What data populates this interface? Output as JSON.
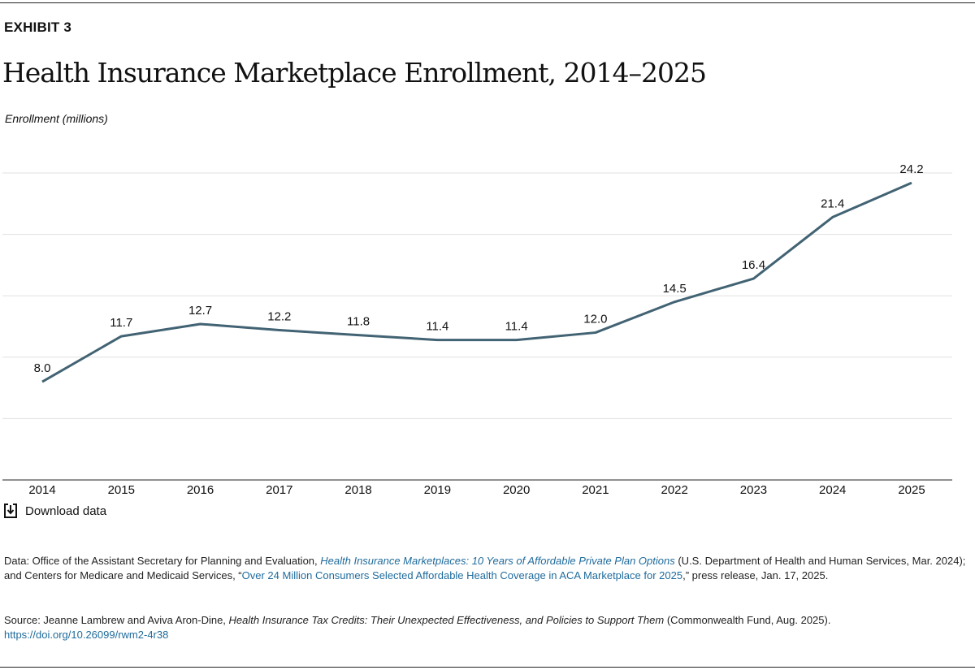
{
  "exhibit": "EXHIBIT 3",
  "title": "Health Insurance Marketplace Enrollment, 2014–2025",
  "download_label": "Download data",
  "colors": {
    "line": "#426373",
    "link": "#1f6b9c",
    "grid": "#e0e0e0"
  },
  "chart_data": {
    "type": "line",
    "title": "Health Insurance Marketplace Enrollment, 2014–2025",
    "ylabel": "Enrollment (millions)",
    "xlabel": "",
    "categories": [
      "2014",
      "2015",
      "2016",
      "2017",
      "2018",
      "2019",
      "2020",
      "2021",
      "2022",
      "2023",
      "2024",
      "2025"
    ],
    "values": [
      8.0,
      11.7,
      12.7,
      12.2,
      11.8,
      11.4,
      11.4,
      12.0,
      14.5,
      16.4,
      21.4,
      24.2
    ],
    "data_labels": [
      "8.0",
      "11.7",
      "12.7",
      "12.2",
      "11.8",
      "11.4",
      "11.4",
      "12.0",
      "14.5",
      "16.4",
      "21.4",
      "24.2"
    ],
    "ylim": [
      0,
      25
    ],
    "gridlines": [
      5,
      10,
      15,
      20,
      25
    ],
    "grid": true,
    "y_tick_labels_shown": false
  },
  "footer": {
    "data_prefix": "Data: Office of the Assistant Secretary for Planning and Evaluation, ",
    "data_link1": "Health Insurance Marketplaces: 10 Years of Affordable Private Plan Options",
    "data_mid": " (U.S. Department of Health and Human Services, Mar. 2024); and Centers for Medicare and Medicaid Services, “",
    "data_link2": "Over 24 Million Consumers Selected Affordable Health Coverage in ACA Marketplace for 2025",
    "data_suffix": ",” press release, Jan. 17, 2025.",
    "source_prefix": "Source: Jeanne Lambrew and Aviva Aron-Dine, ",
    "source_title": "Health Insurance Tax Credits: Their Unexpected Effectiveness, and Policies to Support Them",
    "source_suffix": " (Commonwealth Fund, Aug. 2025).",
    "doi": "https://doi.org/10.26099/rwm2-4r38"
  }
}
